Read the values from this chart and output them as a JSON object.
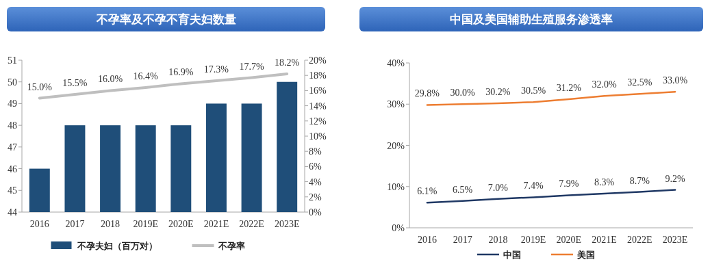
{
  "chart_data": [
    {
      "type": "bar",
      "title": "不孕率及不孕不育夫妇数量",
      "categories": [
        "2016",
        "2017",
        "2018",
        "2019E",
        "2020E",
        "2021E",
        "2022E",
        "2023E"
      ],
      "series": [
        {
          "name": "不孕夫妇（百万对）",
          "color": "#1f4e79",
          "values": [
            46,
            48,
            48,
            48,
            48,
            49,
            49,
            50
          ]
        },
        {
          "name": "不孕率",
          "type": "line",
          "axis": "y2",
          "color": "#bfbfbf",
          "values": [
            15.0,
            15.5,
            16.0,
            16.4,
            16.9,
            17.3,
            17.7,
            18.2
          ],
          "value_labels": [
            "15.0%",
            "15.5%",
            "16.0%",
            "16.4%",
            "16.9%",
            "17.3%",
            "17.7%",
            "18.2%"
          ]
        }
      ],
      "ylim": [
        44,
        51
      ],
      "yticks": [
        44,
        45,
        46,
        47,
        48,
        49,
        50,
        51
      ],
      "y2lim": [
        0,
        20
      ],
      "y2ticks": [
        {
          "value": 0,
          "label": "0%"
        },
        {
          "value": 2,
          "label": "2%"
        },
        {
          "value": 4,
          "label": "4%"
        },
        {
          "value": 6,
          "label": "6%"
        },
        {
          "value": 8,
          "label": "8%"
        },
        {
          "value": 10,
          "label": "10%"
        },
        {
          "value": 12,
          "label": "12%"
        },
        {
          "value": 14,
          "label": "14%"
        },
        {
          "value": 16,
          "label": "16%"
        },
        {
          "value": 18,
          "label": "18%"
        },
        {
          "value": 20,
          "label": "20%"
        }
      ],
      "legend": "bottom"
    },
    {
      "type": "line",
      "title": "中国及美国辅助生殖服务渗透率",
      "categories": [
        "2016",
        "2017",
        "2018",
        "2019E",
        "2020E",
        "2021E",
        "2022E",
        "2023E"
      ],
      "series": [
        {
          "name": "中国",
          "color": "#1f3864",
          "values": [
            6.1,
            6.5,
            7.0,
            7.4,
            7.9,
            8.3,
            8.7,
            9.2
          ],
          "value_labels": [
            "6.1%",
            "6.5%",
            "7.0%",
            "7.4%",
            "7.9%",
            "8.3%",
            "8.7%",
            "9.2%"
          ]
        },
        {
          "name": "美国",
          "color": "#ed7d31",
          "values": [
            29.8,
            30.0,
            30.2,
            30.5,
            31.2,
            32.0,
            32.5,
            33.0
          ],
          "value_labels": [
            "29.8%",
            "30.0%",
            "30.2%",
            "30.5%",
            "31.2%",
            "32.0%",
            "32.5%",
            "33.0%"
          ]
        }
      ],
      "ylim": [
        0,
        40
      ],
      "yticks": [
        {
          "value": 0,
          "label": "0%"
        },
        {
          "value": 10,
          "label": "10%"
        },
        {
          "value": 20,
          "label": "20%"
        },
        {
          "value": 30,
          "label": "30%"
        },
        {
          "value": 40,
          "label": "40%"
        }
      ],
      "legend": "bottom"
    }
  ]
}
